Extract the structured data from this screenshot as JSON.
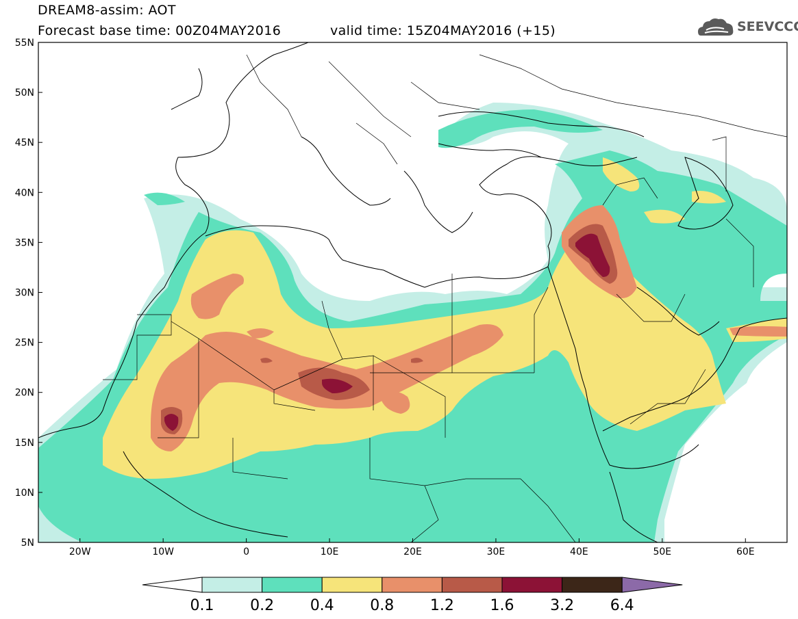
{
  "header": {
    "title": "DREAM8-assim: AOT",
    "base_time": "Forecast base time: 00Z04MAY2016",
    "valid_time": "valid time: 15Z04MAY2016 (+15)",
    "logo_text": "SEEVCCC",
    "logo_icon": "cloud-icon"
  },
  "map": {
    "lat_labels": [
      "55N",
      "50N",
      "45N",
      "40N",
      "35N",
      "30N",
      "25N",
      "20N",
      "15N",
      "10N",
      "5N"
    ],
    "lon_labels": [
      "20W",
      "10W",
      "0",
      "10E",
      "20E",
      "30E",
      "40E",
      "50E",
      "60E"
    ],
    "lon_range": [
      -25,
      65
    ],
    "lat_range": [
      5,
      55
    ]
  },
  "legend": {
    "levels": [
      "0.1",
      "0.2",
      "0.4",
      "0.8",
      "1.2",
      "1.6",
      "3.2",
      "6.4"
    ],
    "colors": [
      "#ffffff",
      "#c4eee6",
      "#5ee0bc",
      "#f6e47a",
      "#e8906a",
      "#b85a48",
      "#8c1236",
      "#3c2618",
      "#8c6aa8"
    ]
  }
}
